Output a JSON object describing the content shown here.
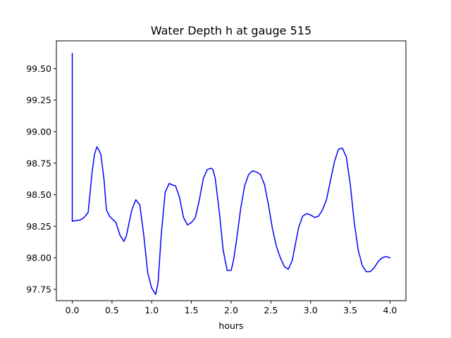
{
  "chart_data": {
    "type": "line",
    "title": "Water Depth h at gauge 515",
    "xlabel": "hours",
    "ylabel": "",
    "xlim": [
      -0.2,
      4.2
    ],
    "ylim": [
      97.66,
      99.72
    ],
    "xticks": [
      0.0,
      0.5,
      1.0,
      1.5,
      2.0,
      2.5,
      3.0,
      3.5,
      4.0
    ],
    "xtick_labels": [
      "0.0",
      "0.5",
      "1.0",
      "1.5",
      "2.0",
      "2.5",
      "3.0",
      "3.5",
      "4.0"
    ],
    "yticks": [
      97.75,
      98.0,
      98.25,
      98.5,
      98.75,
      99.0,
      99.25,
      99.5
    ],
    "ytick_labels": [
      "97.75",
      "98.00",
      "98.25",
      "98.50",
      "98.75",
      "99.00",
      "99.25",
      "99.50"
    ],
    "grid": false,
    "series": [
      {
        "color": "#0000ff",
        "x": [
          0.0,
          0.0,
          0.0,
          0.1,
          0.15,
          0.2,
          0.25,
          0.28,
          0.31,
          0.33,
          0.36,
          0.4,
          0.43,
          0.47,
          0.5,
          0.55,
          0.6,
          0.65,
          0.68,
          0.7,
          0.75,
          0.8,
          0.85,
          0.9,
          0.95,
          1.0,
          1.05,
          1.08,
          1.12,
          1.17,
          1.22,
          1.25,
          1.3,
          1.35,
          1.4,
          1.45,
          1.5,
          1.55,
          1.6,
          1.65,
          1.7,
          1.75,
          1.77,
          1.8,
          1.85,
          1.9,
          1.95,
          2.0,
          2.03,
          2.07,
          2.12,
          2.17,
          2.22,
          2.27,
          2.32,
          2.37,
          2.42,
          2.47,
          2.52,
          2.57,
          2.62,
          2.67,
          2.72,
          2.77,
          2.8,
          2.85,
          2.9,
          2.95,
          3.0,
          3.05,
          3.1,
          3.15,
          3.2,
          3.25,
          3.3,
          3.35,
          3.4,
          3.45,
          3.5,
          3.55,
          3.6,
          3.65,
          3.7,
          3.75,
          3.8,
          3.85,
          3.9,
          3.95,
          4.0
        ],
        "y": [
          99.62,
          98.29,
          98.29,
          98.3,
          98.32,
          98.36,
          98.68,
          98.82,
          98.88,
          98.86,
          98.82,
          98.62,
          98.38,
          98.33,
          98.31,
          98.28,
          98.18,
          98.13,
          98.17,
          98.23,
          98.38,
          98.46,
          98.42,
          98.18,
          97.88,
          97.76,
          97.71,
          97.8,
          98.18,
          98.52,
          98.59,
          98.58,
          98.57,
          98.48,
          98.32,
          98.26,
          98.28,
          98.32,
          98.46,
          98.63,
          98.7,
          98.71,
          98.7,
          98.63,
          98.37,
          98.06,
          97.9,
          97.9,
          97.98,
          98.15,
          98.39,
          98.57,
          98.66,
          98.69,
          98.68,
          98.66,
          98.58,
          98.42,
          98.23,
          98.09,
          98.0,
          97.93,
          97.91,
          97.98,
          98.08,
          98.24,
          98.33,
          98.35,
          98.34,
          98.32,
          98.33,
          98.38,
          98.46,
          98.61,
          98.76,
          98.86,
          98.87,
          98.8,
          98.58,
          98.28,
          98.06,
          97.94,
          97.89,
          97.89,
          97.92,
          97.97,
          98.0,
          98.01,
          98.0
        ]
      }
    ]
  }
}
